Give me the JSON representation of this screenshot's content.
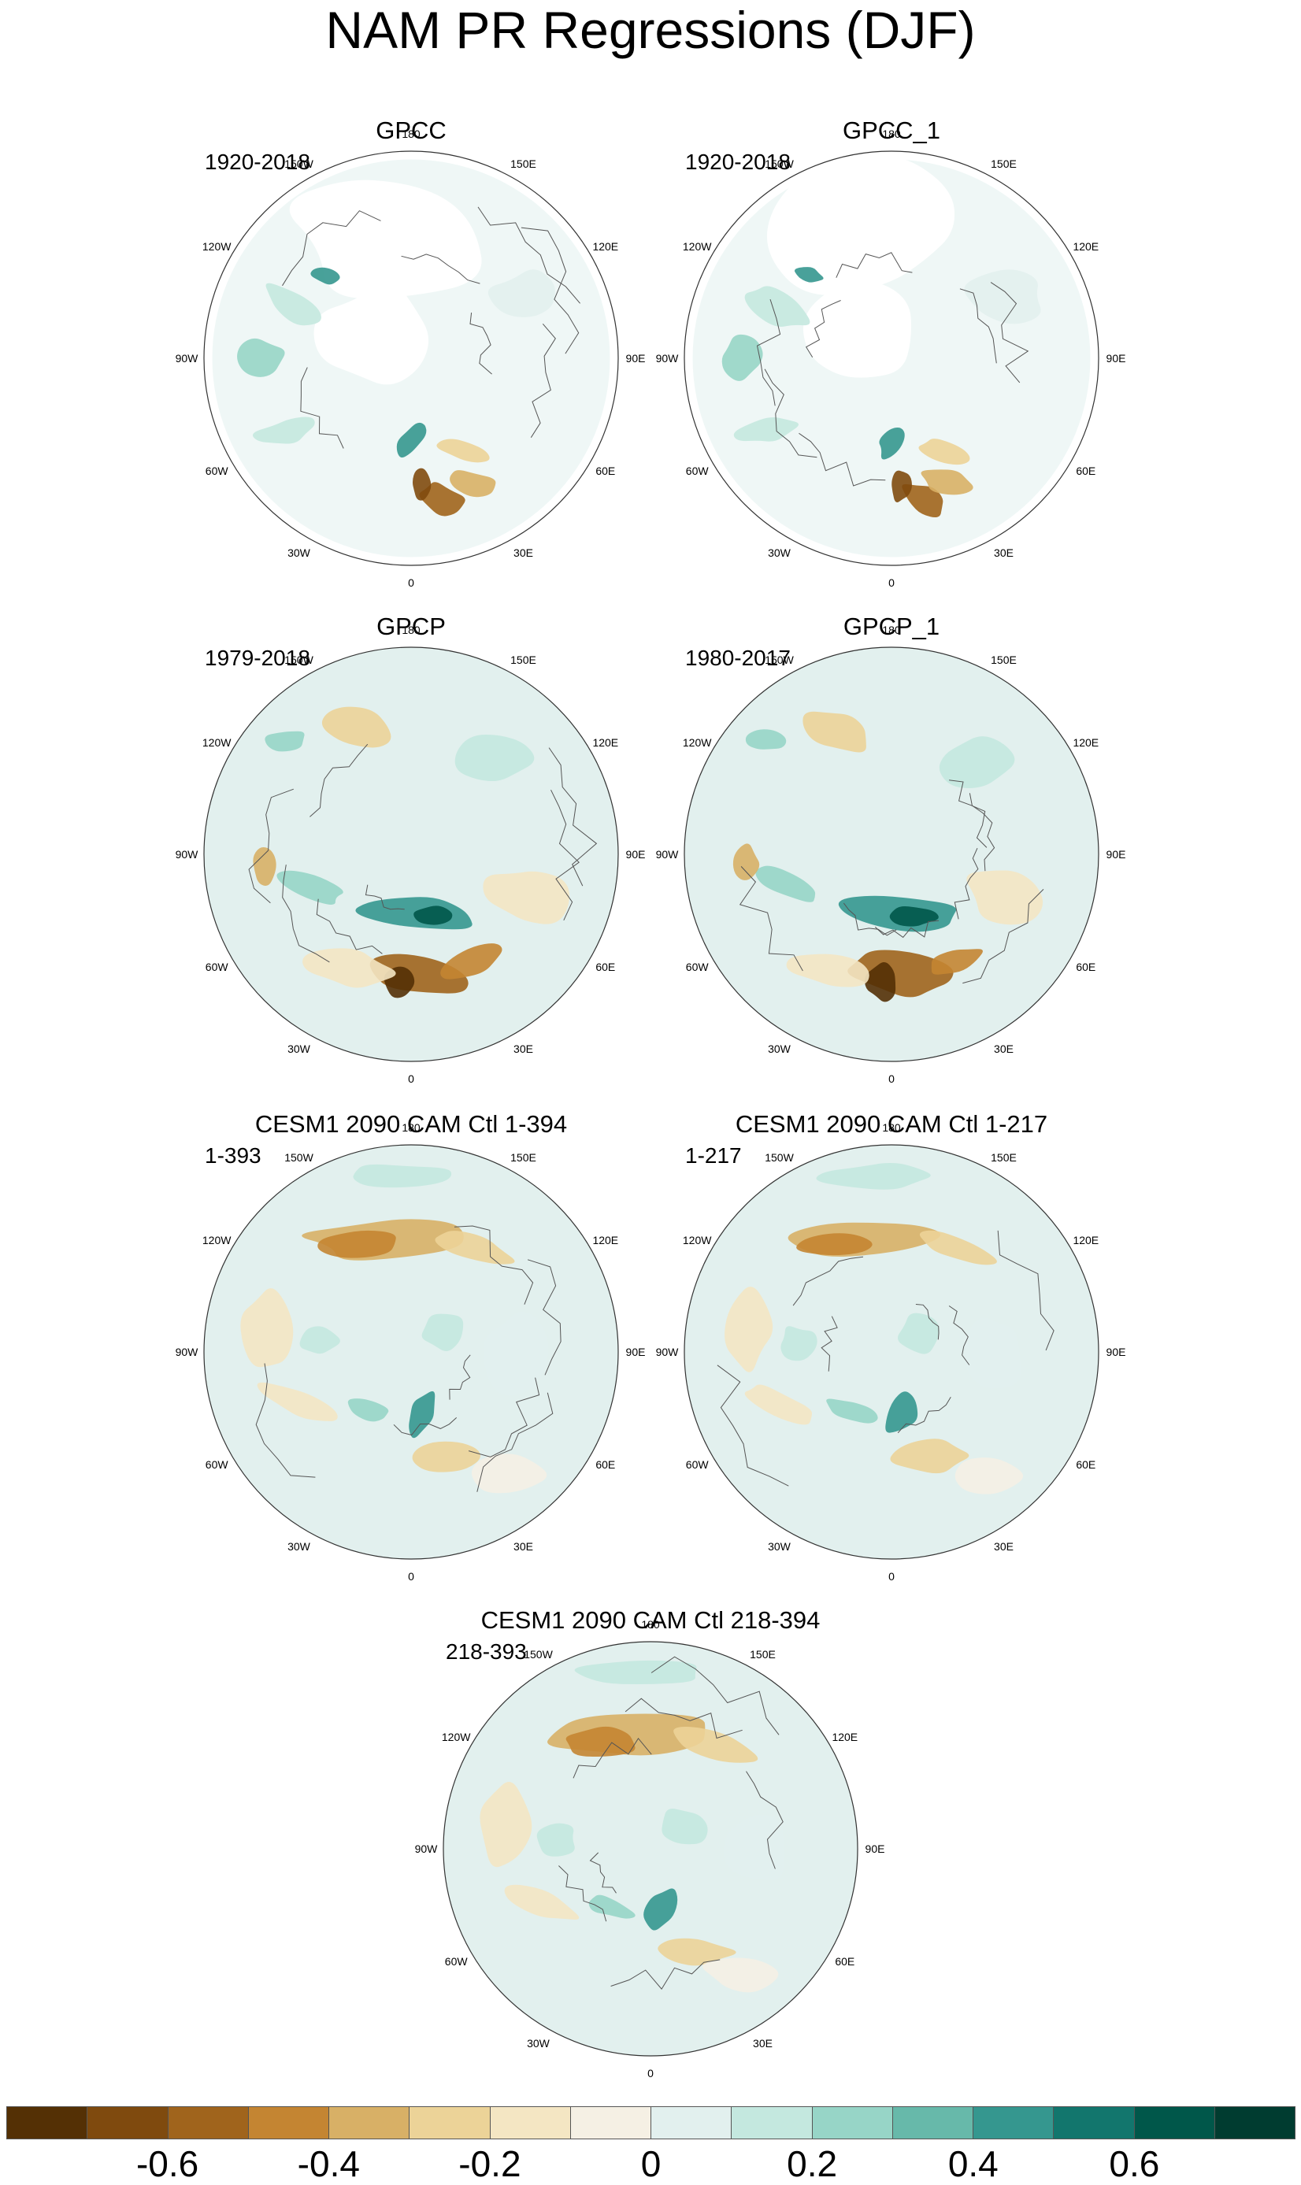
{
  "title": "NAM PR Regressions (DJF)",
  "panels": [
    {
      "title": "GPCC",
      "period": "1920-2018"
    },
    {
      "title": "GPCC_1",
      "period": "1920-2018"
    },
    {
      "title": "GPCP",
      "period": "1979-2018"
    },
    {
      "title": "GPCP_1",
      "period": "1980-2017"
    },
    {
      "title": "CESM1 2090 CAM Ctl 1-394",
      "period": "1-393"
    },
    {
      "title": "CESM1 2090 CAM Ctl 1-217",
      "period": "1-217"
    },
    {
      "title": "CESM1 2090 CAM Ctl 218-394",
      "period": "218-393"
    }
  ],
  "longitude_labels": [
    "180",
    "150E",
    "120E",
    "90E",
    "60E",
    "30E",
    "0",
    "30W",
    "60W",
    "90W",
    "120W",
    "150W"
  ],
  "colorbar": {
    "colors": [
      "#543005",
      "#7f4a0e",
      "#a0641c",
      "#c48532",
      "#d8b066",
      "#ecd398",
      "#f4e6c3",
      "#f5f0e4",
      "#e2f0ee",
      "#c4e8df",
      "#97d5c7",
      "#67b9aa",
      "#35978f",
      "#12766d",
      "#00574a",
      "#003c30"
    ],
    "labels": [
      "-0.6",
      "-0.4",
      "-0.2",
      "0",
      "0.2",
      "0.4",
      "0.6"
    ],
    "label_values": [
      -0.6,
      -0.4,
      -0.2,
      0,
      0.2,
      0.4,
      0.6
    ],
    "range": [
      -0.8,
      0.8
    ]
  }
}
